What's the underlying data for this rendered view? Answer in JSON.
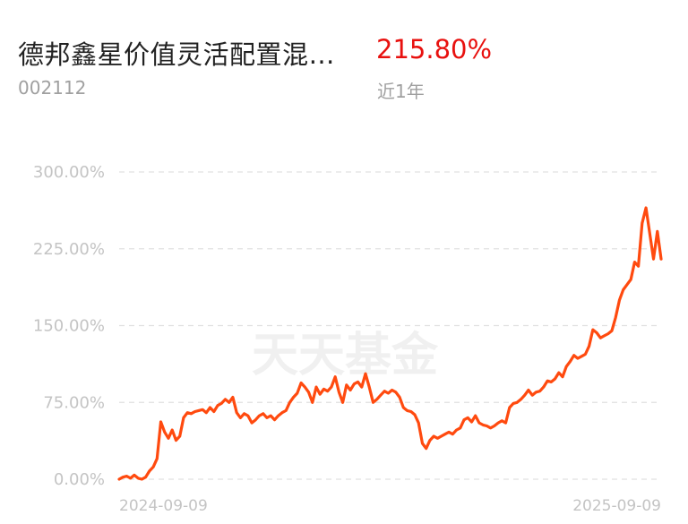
{
  "fund": {
    "name": "德邦鑫星价值灵活配置混…",
    "code": "002112",
    "return_pct": "215.80%",
    "period": "近1年",
    "watermark": "天天基金"
  },
  "colors": {
    "line": "#ff4a0f",
    "return_positive": "#e8110f",
    "axis_text": "#c4c4c4",
    "grid": "#e0e0e0"
  },
  "chart_data": {
    "type": "line",
    "title": "",
    "xlabel": "",
    "ylabel": "",
    "ylim": [
      0,
      300
    ],
    "y_ticks": [
      "0.00%",
      "75.00%",
      "150.00%",
      "225.00%",
      "300.00%"
    ],
    "y_tick_values": [
      0,
      75,
      150,
      225,
      300
    ],
    "x_ticks": [
      "2024-09-09",
      "2025-09-09"
    ],
    "grid": true,
    "x_range": [
      "2024-09-09",
      "2025-09-09"
    ],
    "series": [
      {
        "values": [
          0,
          2,
          3,
          1,
          4,
          1,
          0,
          2,
          8,
          12,
          20,
          56,
          46,
          40,
          48,
          38,
          42,
          60,
          65,
          64,
          66,
          67,
          68,
          65,
          70,
          66,
          72,
          74,
          78,
          75,
          80,
          65,
          60,
          64,
          62,
          55,
          58,
          62,
          64,
          60,
          62,
          58,
          62,
          65,
          67,
          75,
          80,
          84,
          94,
          90,
          85,
          75,
          90,
          83,
          88,
          86,
          90,
          100,
          85,
          75,
          92,
          87,
          93,
          95,
          90,
          103,
          90,
          75,
          78,
          82,
          86,
          84,
          87,
          85,
          80,
          70,
          67,
          66,
          63,
          55,
          35,
          30,
          38,
          42,
          40,
          42,
          44,
          46,
          44,
          48,
          50,
          58,
          60,
          56,
          62,
          55,
          53,
          52,
          50,
          52,
          55,
          57,
          55,
          70,
          74,
          75,
          78,
          82,
          87,
          82,
          85,
          86,
          90,
          96,
          95,
          98,
          104,
          100,
          110,
          115,
          121,
          118,
          120,
          122,
          130,
          146,
          143,
          138,
          140,
          142,
          145,
          158,
          175,
          185,
          190,
          195,
          212,
          208,
          250,
          265,
          240,
          215,
          242,
          215
        ]
      }
    ]
  }
}
